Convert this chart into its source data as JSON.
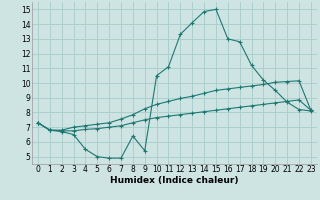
{
  "xlabel": "Humidex (Indice chaleur)",
  "xlim": [
    -0.5,
    23.5
  ],
  "ylim": [
    4.5,
    15.5
  ],
  "xticks": [
    0,
    1,
    2,
    3,
    4,
    5,
    6,
    7,
    8,
    9,
    10,
    11,
    12,
    13,
    14,
    15,
    16,
    17,
    18,
    19,
    20,
    21,
    22,
    23
  ],
  "yticks": [
    5,
    6,
    7,
    8,
    9,
    10,
    11,
    12,
    13,
    14,
    15
  ],
  "bg_color": "#cde4e3",
  "grid_color": "#aacfcd",
  "line_color": "#1e7872",
  "line1_x": [
    0,
    1,
    2,
    3,
    4,
    5,
    6,
    7,
    8,
    9,
    10,
    11,
    12,
    13,
    14,
    15,
    16,
    17,
    18,
    19,
    20,
    21,
    22,
    23
  ],
  "line1_y": [
    7.3,
    6.8,
    6.7,
    6.5,
    5.5,
    5.0,
    4.9,
    4.9,
    6.4,
    5.4,
    10.5,
    11.1,
    13.3,
    14.1,
    14.85,
    15.0,
    13.0,
    12.8,
    11.2,
    10.2,
    9.5,
    8.7,
    8.2,
    8.1
  ],
  "line2_x": [
    0,
    1,
    2,
    3,
    4,
    5,
    6,
    7,
    8,
    9,
    10,
    11,
    12,
    13,
    14,
    15,
    16,
    17,
    18,
    19,
    20,
    21,
    22,
    23
  ],
  "line2_y": [
    7.3,
    6.8,
    6.8,
    7.0,
    7.1,
    7.2,
    7.3,
    7.55,
    7.85,
    8.25,
    8.55,
    8.75,
    8.95,
    9.1,
    9.3,
    9.5,
    9.6,
    9.7,
    9.8,
    9.9,
    10.05,
    10.1,
    10.15,
    8.15
  ],
  "line3_x": [
    0,
    1,
    2,
    3,
    4,
    5,
    6,
    7,
    8,
    9,
    10,
    11,
    12,
    13,
    14,
    15,
    16,
    17,
    18,
    19,
    20,
    21,
    22,
    23
  ],
  "line3_y": [
    7.3,
    6.8,
    6.75,
    6.75,
    6.85,
    6.9,
    7.0,
    7.1,
    7.3,
    7.5,
    7.65,
    7.75,
    7.85,
    7.95,
    8.05,
    8.15,
    8.25,
    8.35,
    8.45,
    8.55,
    8.65,
    8.75,
    8.85,
    8.15
  ]
}
